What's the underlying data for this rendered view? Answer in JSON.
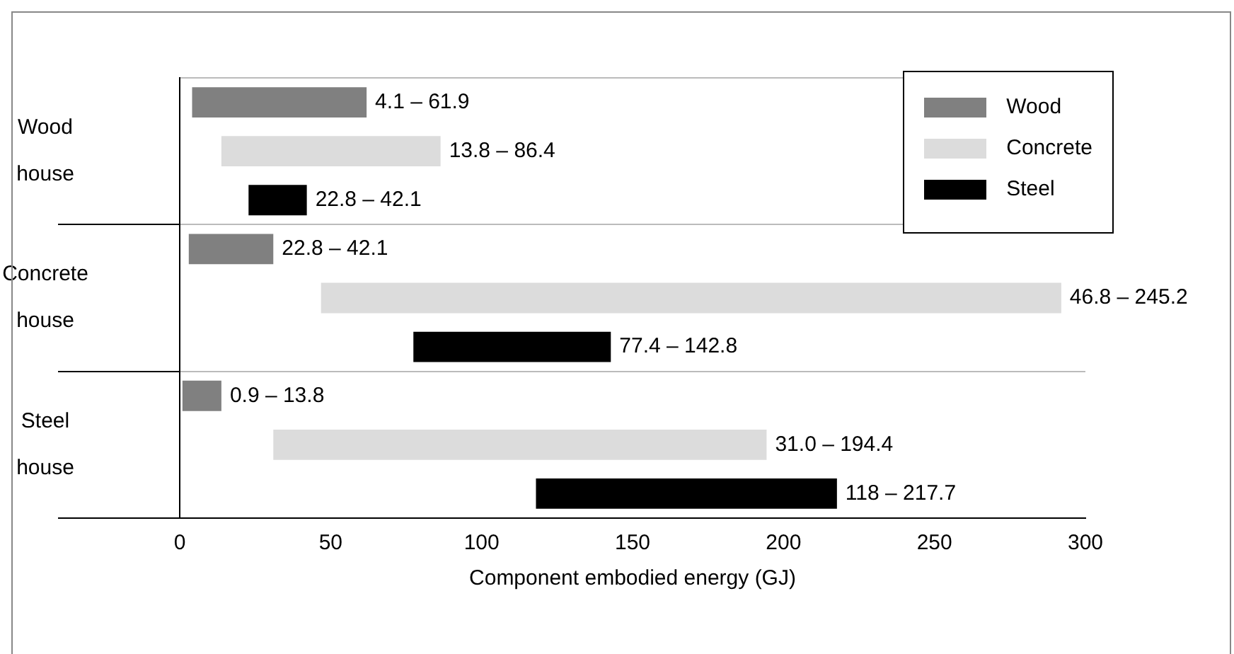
{
  "chart_data": {
    "type": "bar",
    "orientation": "horizontal",
    "xlabel": "Component embodied energy (GJ)",
    "categories": [
      "Wood house",
      "Concrete house",
      "Steel house"
    ],
    "series": [
      {
        "name": "Wood",
        "color": "#808080",
        "base": [
          4.1,
          3,
          0.9
        ],
        "values": [
          57.8,
          28,
          12.9
        ]
      },
      {
        "name": "Concrete",
        "color": "#dcdcdc",
        "base": [
          13.8,
          46.8,
          31.0
        ],
        "values": [
          72.6,
          245.2,
          163.4
        ]
      },
      {
        "name": "Steel",
        "color": "#000000",
        "base": [
          22.8,
          77.4,
          118
        ],
        "values": [
          19.3,
          65.4,
          99.7
        ]
      }
    ],
    "annotations": [
      "4.1 – 61.9",
      "13.8 – 86.4",
      "22.8 – 42.1",
      "22.8 – 42.1",
      "46.8 – 245.2",
      "77.4 – 142.8",
      "0.9 – 13.8",
      "31.0 – 194.4",
      "118 – 217.7"
    ],
    "xlim": [
      0,
      300
    ],
    "xticks": [
      0,
      50,
      100,
      150,
      200,
      250,
      300
    ],
    "grid": "y",
    "legend": "top right"
  }
}
